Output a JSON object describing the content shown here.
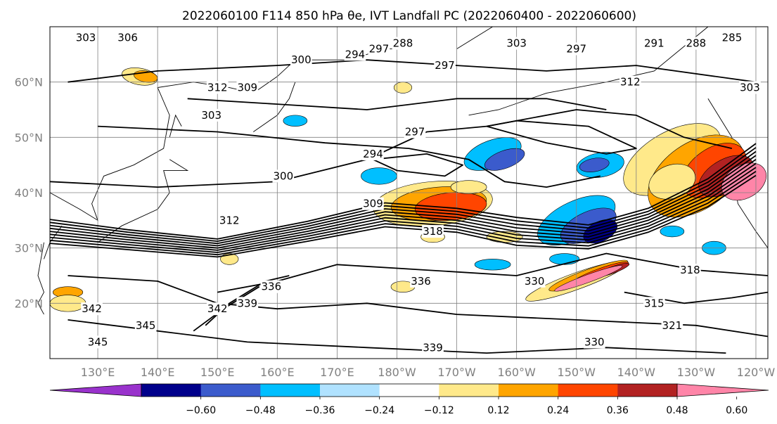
{
  "chart_data": {
    "type": "heatmap",
    "title": "2022060100 F114 850 hPa θe, IVT Landfall PC (2022060400 - 2022060600)",
    "x_tick_labels": [
      "130°E",
      "140°E",
      "150°E",
      "160°E",
      "170°E",
      "180°W",
      "170°W",
      "160°W",
      "150°W",
      "140°W",
      "130°W",
      "120°W"
    ],
    "y_tick_labels": [
      "60°N",
      "50°N",
      "40°N",
      "30°N",
      "20°N"
    ],
    "lon_range": [
      122,
      242
    ],
    "lat_range": [
      10,
      70
    ],
    "colorbar": {
      "boundaries": [
        -0.6,
        -0.48,
        -0.36,
        -0.24,
        -0.12,
        0.12,
        0.24,
        0.36,
        0.48,
        0.6
      ],
      "tick_labels": [
        "−0.60",
        "−0.48",
        "−0.36",
        "−0.24",
        "−0.12",
        "0.12",
        "0.24",
        "0.36",
        "0.48",
        "0.60"
      ],
      "colors": [
        "#9932cc",
        "#00008b",
        "#3b5bcc",
        "#00bfff",
        "#b0e2ff",
        "#ffffff",
        "#ffe98a",
        "#ffa500",
        "#ff4500",
        "#b22222",
        "#ff85a8"
      ],
      "extend": "both"
    },
    "contour_labels": [
      {
        "text": "303",
        "lon": 128,
        "lat": 68
      },
      {
        "text": "306",
        "lon": 135,
        "lat": 68
      },
      {
        "text": "300",
        "lon": 164,
        "lat": 64
      },
      {
        "text": "294",
        "lon": 173,
        "lat": 65
      },
      {
        "text": "297",
        "lon": 177,
        "lat": 66
      },
      {
        "text": "288",
        "lon": 181,
        "lat": 67
      },
      {
        "text": "297",
        "lon": 188,
        "lat": 63
      },
      {
        "text": "303",
        "lon": 200,
        "lat": 67
      },
      {
        "text": "297",
        "lon": 210,
        "lat": 66
      },
      {
        "text": "291",
        "lon": 223,
        "lat": 67
      },
      {
        "text": "288",
        "lon": 230,
        "lat": 67
      },
      {
        "text": "285",
        "lon": 236,
        "lat": 68
      },
      {
        "text": "312",
        "lon": 150,
        "lat": 59
      },
      {
        "text": "309",
        "lon": 155,
        "lat": 59
      },
      {
        "text": "303",
        "lon": 149,
        "lat": 54
      },
      {
        "text": "312",
        "lon": 219,
        "lat": 60
      },
      {
        "text": "303",
        "lon": 239,
        "lat": 59
      },
      {
        "text": "297",
        "lon": 183,
        "lat": 51
      },
      {
        "text": "294",
        "lon": 176,
        "lat": 47
      },
      {
        "text": "300",
        "lon": 161,
        "lat": 43
      },
      {
        "text": "309",
        "lon": 176,
        "lat": 38
      },
      {
        "text": "318",
        "lon": 186,
        "lat": 33
      },
      {
        "text": "312",
        "lon": 152,
        "lat": 35
      },
      {
        "text": "318",
        "lon": 229,
        "lat": 26
      },
      {
        "text": "336",
        "lon": 184,
        "lat": 24
      },
      {
        "text": "336",
        "lon": 159,
        "lat": 23
      },
      {
        "text": "339",
        "lon": 155,
        "lat": 20
      },
      {
        "text": "342",
        "lon": 150,
        "lat": 19
      },
      {
        "text": "342",
        "lon": 129,
        "lat": 19
      },
      {
        "text": "345",
        "lon": 138,
        "lat": 16
      },
      {
        "text": "345",
        "lon": 130,
        "lat": 13
      },
      {
        "text": "315",
        "lon": 223,
        "lat": 20
      },
      {
        "text": "321",
        "lon": 226,
        "lat": 16
      },
      {
        "text": "339",
        "lon": 186,
        "lat": 12
      },
      {
        "text": "330",
        "lon": 203,
        "lat": 24
      },
      {
        "text": "330",
        "lon": 213,
        "lat": 13
      }
    ]
  }
}
